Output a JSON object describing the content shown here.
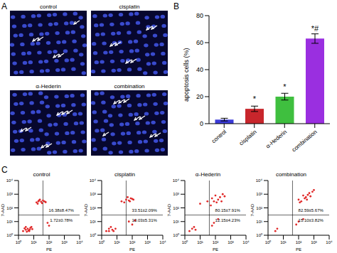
{
  "panel_labels": [
    "A",
    "B",
    "C"
  ],
  "images": {
    "titles": [
      "control",
      "cisplatin",
      "α-Hederin",
      "combination"
    ]
  },
  "chart_data": [
    {
      "type": "bar",
      "categories": [
        "control",
        "cisplatin",
        "α-Hederin",
        "combination"
      ],
      "values": [
        3,
        11,
        20,
        63
      ],
      "errors": [
        1,
        2,
        2.5,
        3.5
      ],
      "colors": [
        "#3b3bd9",
        "#c8262c",
        "#3fbf3f",
        "#9a2fe0"
      ],
      "ylabel": "apoptosis cells (%)",
      "ylim": [
        0,
        80
      ],
      "yticks": [
        0,
        20,
        40,
        60,
        80
      ],
      "significance": [
        null,
        "*",
        "*",
        "*#"
      ]
    },
    {
      "type": "scatter",
      "title": "control",
      "xlabel": "PE",
      "ylabel": "7-AAD",
      "log": true,
      "color": "#e02828",
      "xlim": [
        1,
        10000
      ],
      "ylim": [
        1,
        10000
      ],
      "xticks": [
        {
          "value": 1,
          "label": "10⁰"
        },
        {
          "value": 10,
          "label": "10¹"
        },
        {
          "value": 100,
          "label": "10²"
        },
        {
          "value": 1000,
          "label": "10³"
        },
        {
          "value": 10000,
          "label": "10⁴"
        }
      ],
      "yticks": [
        {
          "value": 1,
          "label": "10⁰"
        },
        {
          "value": 10,
          "label": "10¹"
        },
        {
          "value": 100,
          "label": "10²"
        },
        {
          "value": 1000,
          "label": "10³"
        },
        {
          "value": 10000,
          "label": "10⁴"
        }
      ],
      "gate": {
        "x": 40,
        "y": 30
      },
      "points": [
        [
          2,
          2
        ],
        [
          3,
          2.5
        ],
        [
          4,
          3
        ],
        [
          5,
          2
        ],
        [
          6,
          3.5
        ],
        [
          3,
          4
        ],
        [
          8,
          2.8
        ],
        [
          2.5,
          3.2
        ],
        [
          4.5,
          2.2
        ],
        [
          7,
          4
        ],
        [
          3.5,
          1.8
        ],
        [
          5.5,
          2.6
        ],
        [
          15,
          250
        ],
        [
          20,
          300
        ],
        [
          30,
          280
        ],
        [
          25,
          400
        ],
        [
          40,
          350
        ],
        [
          18,
          200
        ],
        [
          50,
          300
        ],
        [
          35,
          220
        ],
        [
          60,
          260
        ],
        [
          22,
          350
        ],
        [
          80,
          8
        ],
        [
          100,
          5
        ]
      ],
      "annotations": [
        {
          "text": "16.38±8.47%",
          "position": "upper_right"
        },
        {
          "text": "1.72±0.78%",
          "position": "lower_right"
        }
      ]
    },
    {
      "type": "scatter",
      "title": "cisplatin",
      "xlabel": "PE",
      "ylabel": "7-AAD",
      "log": true,
      "color": "#e02828",
      "xlim": [
        1,
        10000
      ],
      "ylim": [
        1,
        10000
      ],
      "xticks": [
        {
          "value": 1,
          "label": "10⁰"
        },
        {
          "value": 10,
          "label": "10¹"
        },
        {
          "value": 100,
          "label": "10²"
        },
        {
          "value": 1000,
          "label": "10³"
        },
        {
          "value": 10000,
          "label": "10⁴"
        }
      ],
      "yticks": [
        {
          "value": 1,
          "label": "10⁰"
        },
        {
          "value": 10,
          "label": "10¹"
        },
        {
          "value": 100,
          "label": "10²"
        },
        {
          "value": 1000,
          "label": "10³"
        },
        {
          "value": 10000,
          "label": "10⁴"
        }
      ],
      "gate": {
        "x": 40,
        "y": 30
      },
      "points": [
        [
          2,
          2
        ],
        [
          3,
          3
        ],
        [
          5,
          2.5
        ],
        [
          4,
          4
        ],
        [
          6,
          2
        ],
        [
          8,
          3
        ],
        [
          3,
          2
        ],
        [
          20,
          300
        ],
        [
          40,
          400
        ],
        [
          60,
          350
        ],
        [
          80,
          500
        ],
        [
          30,
          250
        ],
        [
          100,
          450
        ],
        [
          50,
          600
        ],
        [
          70,
          300
        ],
        [
          120,
          400
        ],
        [
          60,
          10
        ],
        [
          100,
          6
        ],
        [
          150,
          12
        ]
      ],
      "annotations": [
        {
          "text": "33.51±2.09%",
          "position": "upper_right"
        },
        {
          "text": "10.03±5.31%",
          "position": "lower_right"
        }
      ]
    },
    {
      "type": "scatter",
      "title": "α-Hederin",
      "xlabel": "PE",
      "ylabel": "7-AAD",
      "log": true,
      "color": "#e02828",
      "xlim": [
        1,
        10000
      ],
      "ylim": [
        1,
        10000
      ],
      "xticks": [
        {
          "value": 1,
          "label": "10⁰"
        },
        {
          "value": 10,
          "label": "10¹"
        },
        {
          "value": 100,
          "label": "10²"
        },
        {
          "value": 1000,
          "label": "10³"
        },
        {
          "value": 10000,
          "label": "10⁴"
        }
      ],
      "yticks": [
        {
          "value": 1,
          "label": "10⁰"
        },
        {
          "value": 10,
          "label": "10¹"
        },
        {
          "value": 100,
          "label": "10²"
        },
        {
          "value": 1000,
          "label": "10³"
        },
        {
          "value": 10000,
          "label": "10⁴"
        }
      ],
      "gate": {
        "x": 40,
        "y": 30
      },
      "points": [
        [
          2,
          2
        ],
        [
          3,
          3
        ],
        [
          5,
          2.5
        ],
        [
          4,
          4
        ],
        [
          10,
          200
        ],
        [
          30,
          300
        ],
        [
          60,
          500
        ],
        [
          100,
          800
        ],
        [
          200,
          600
        ],
        [
          150,
          400
        ],
        [
          80,
          300
        ],
        [
          300,
          1000
        ],
        [
          50,
          150
        ],
        [
          400,
          700
        ],
        [
          120,
          250
        ],
        [
          250,
          300
        ],
        [
          80,
          8
        ],
        [
          150,
          15
        ],
        [
          60,
          5
        ]
      ],
      "annotations": [
        {
          "text": "80.15±7.91%",
          "position": "upper_right"
        },
        {
          "text": "12.15±4.23%",
          "position": "lower_right"
        }
      ]
    },
    {
      "type": "scatter",
      "title": "combination",
      "xlabel": "PE",
      "ylabel": "7-AAD",
      "log": true,
      "color": "#e02828",
      "xlim": [
        1,
        10000
      ],
      "ylim": [
        1,
        10000
      ],
      "xticks": [
        {
          "value": 1,
          "label": "10⁰"
        },
        {
          "value": 10,
          "label": "10¹"
        },
        {
          "value": 100,
          "label": "10²"
        },
        {
          "value": 1000,
          "label": "10³"
        },
        {
          "value": 10000,
          "label": "10⁴"
        }
      ],
      "yticks": [
        {
          "value": 1,
          "label": "10⁰"
        },
        {
          "value": 10,
          "label": "10¹"
        },
        {
          "value": 100,
          "label": "10²"
        },
        {
          "value": 1000,
          "label": "10³"
        },
        {
          "value": 10000,
          "label": "10⁴"
        }
      ],
      "gate": {
        "x": 40,
        "y": 30
      },
      "points": [
        [
          3,
          2
        ],
        [
          4,
          3
        ],
        [
          100,
          400
        ],
        [
          200,
          800
        ],
        [
          300,
          600
        ],
        [
          500,
          1200
        ],
        [
          150,
          300
        ],
        [
          400,
          900
        ],
        [
          800,
          1500
        ],
        [
          250,
          500
        ],
        [
          600,
          700
        ],
        [
          120,
          250
        ],
        [
          1000,
          2000
        ],
        [
          350,
          400
        ],
        [
          100,
          10
        ],
        [
          200,
          15
        ],
        [
          70,
          6
        ]
      ],
      "annotations": [
        {
          "text": "82.59±5.67%",
          "position": "upper_right"
        },
        {
          "text": "15.10±3.82%",
          "position": "lower_right"
        }
      ]
    }
  ]
}
